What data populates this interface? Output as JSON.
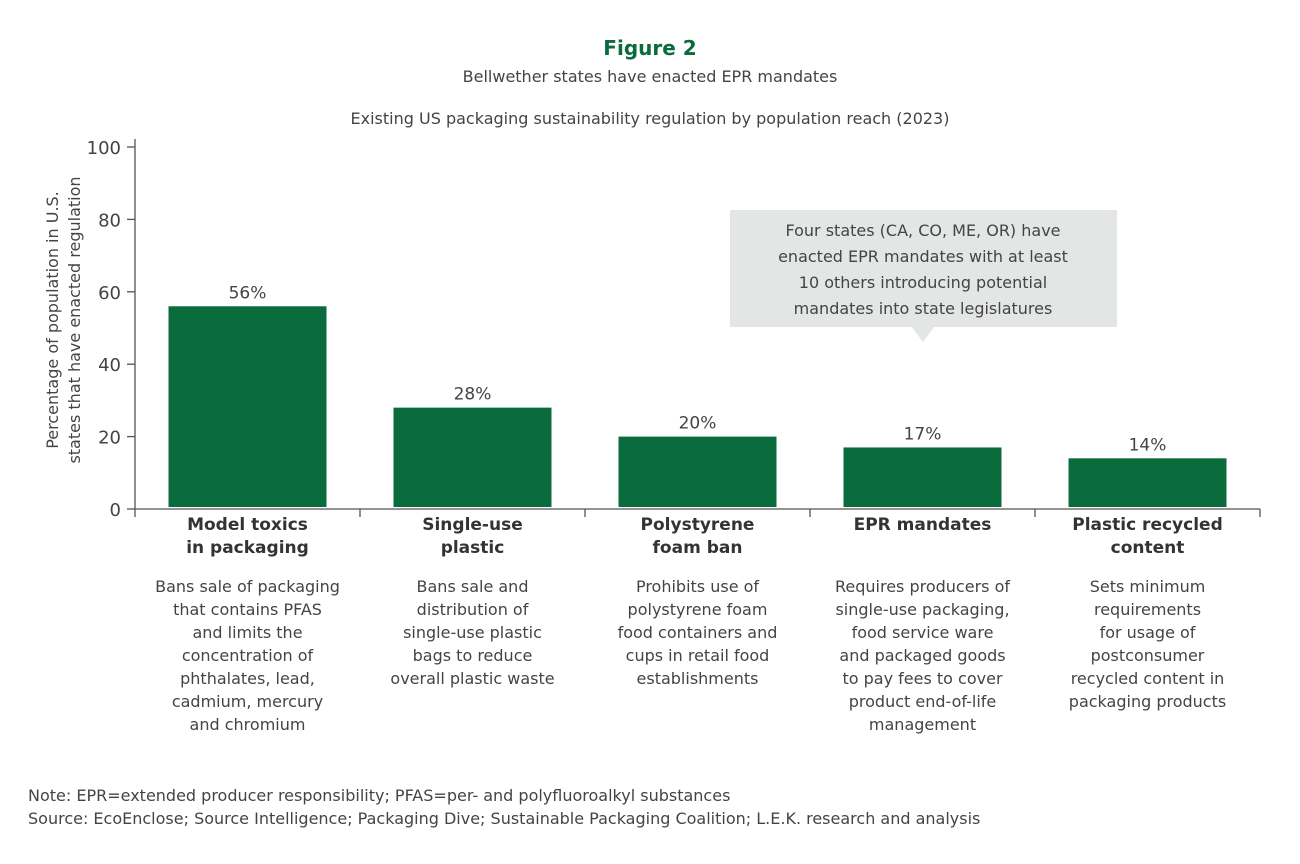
{
  "chart_data": {
    "type": "bar",
    "figure_label": "Figure 2",
    "title": "Bellwether states have enacted EPR mandates",
    "subtitle": "Existing US packaging sustainability regulation by population reach (2023)",
    "ylabel_lines": [
      "Percentage of population in U.S.",
      "states that have enacted regulation"
    ],
    "ylim": [
      0,
      100
    ],
    "yticks": [
      0,
      20,
      40,
      60,
      80,
      100
    ],
    "grid": false,
    "categories": [
      {
        "label": [
          "Model toxics",
          "in packaging"
        ],
        "value": 56,
        "data_label": "56%",
        "description": [
          "Bans sale of packaging",
          "that contains PFAS",
          "and limits the",
          "concentration of",
          "phthalates, lead,",
          "cadmium, mercury",
          "and chromium"
        ]
      },
      {
        "label": [
          "Single-use",
          "plastic"
        ],
        "value": 28,
        "data_label": "28%",
        "description": [
          "Bans sale and",
          "distribution of",
          "single-use plastic",
          "bags to reduce",
          "overall plastic waste"
        ]
      },
      {
        "label": [
          "Polystyrene",
          "foam ban"
        ],
        "value": 20,
        "data_label": "20%",
        "description": [
          "Prohibits use of",
          "polystyrene foam",
          "food containers and",
          "cups in retail food",
          "establishments"
        ]
      },
      {
        "label": [
          "EPR mandates"
        ],
        "value": 17,
        "data_label": "17%",
        "description": [
          "Requires producers of",
          "single-use packaging,",
          "food service ware",
          "and packaged goods",
          "to pay fees to cover",
          "product end-of-life",
          "management"
        ]
      },
      {
        "label": [
          "Plastic recycled",
          "content"
        ],
        "value": 14,
        "data_label": "14%",
        "description": [
          "Sets minimum",
          "requirements",
          "for usage of",
          "postconsumer",
          "recycled content in",
          "packaging products"
        ]
      }
    ],
    "annotation": [
      "Four states (CA, CO, ME, OR) have",
      "enacted EPR mandates with at least",
      "10 others introducing potential",
      "mandates into state legislatures"
    ],
    "note": "Note: EPR=extended producer responsibility; PFAS=per- and polyfluoroalkyl substances",
    "source": "Source: EcoEnclose; Source Intelligence; Packaging Dive; Sustainable Packaging Coalition; L.E.K. research and analysis",
    "colors": {
      "bar": "#0a6b3c",
      "title": "#0a6b3c",
      "annotation_bg": "#e3e6e5",
      "axis": "#555555"
    }
  }
}
